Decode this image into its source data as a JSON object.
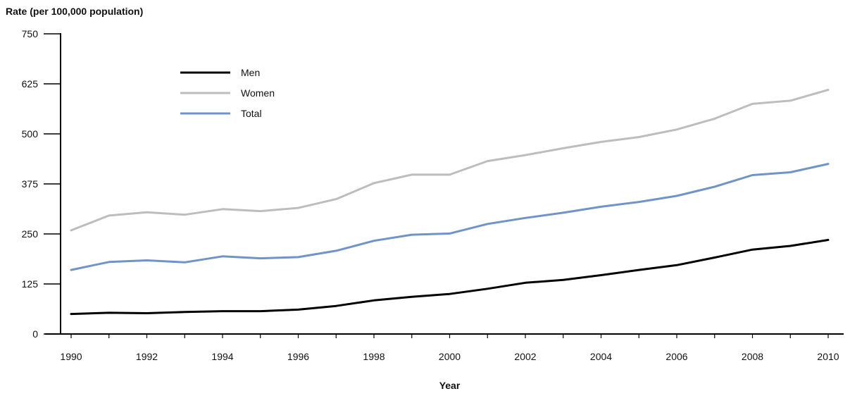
{
  "chart_data": {
    "type": "line",
    "ylabel": "Rate (per 100,000 population)",
    "xlabel": "Year",
    "ylim": [
      0,
      750
    ],
    "xlim": [
      1990,
      2010
    ],
    "yticks": [
      0,
      125,
      250,
      375,
      500,
      625,
      750
    ],
    "xticks": [
      1990,
      1992,
      1994,
      1996,
      1998,
      2000,
      2002,
      2004,
      2006,
      2008,
      2010
    ],
    "x": [
      1990,
      1991,
      1992,
      1993,
      1994,
      1995,
      1996,
      1997,
      1998,
      1999,
      2000,
      2001,
      2002,
      2003,
      2004,
      2005,
      2006,
      2007,
      2008,
      2009,
      2010
    ],
    "grid": false,
    "legend_position": "top-left",
    "series": [
      {
        "name": "Men",
        "color": "#000000",
        "values": [
          50,
          53,
          52,
          55,
          57,
          57,
          61,
          70,
          84,
          93,
          100,
          113,
          128,
          135,
          147,
          160,
          172,
          191,
          211,
          220,
          235
        ]
      },
      {
        "name": "Women",
        "color": "#bdbdbd",
        "values": [
          259,
          296,
          304,
          298,
          312,
          307,
          315,
          337,
          377,
          398,
          398,
          432,
          447,
          464,
          480,
          492,
          511,
          538,
          575,
          583,
          610
        ]
      },
      {
        "name": "Total",
        "color": "#7094c8",
        "values": [
          160,
          180,
          184,
          179,
          194,
          189,
          192,
          208,
          233,
          248,
          251,
          275,
          290,
          303,
          318,
          330,
          345,
          368,
          397,
          404,
          425
        ]
      }
    ]
  }
}
